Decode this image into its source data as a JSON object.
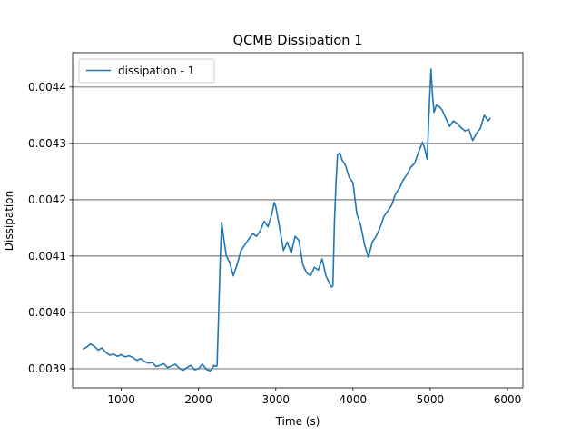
{
  "chart_data": {
    "type": "line",
    "title": "QCMB Dissipation 1",
    "xlabel": "Time (s)",
    "ylabel": "Dissipation",
    "xlim": [
      370,
      6200
    ],
    "ylim": [
      0.003866,
      0.004461
    ],
    "x_ticks": [
      1000,
      2000,
      3000,
      4000,
      5000,
      6000
    ],
    "x_tick_labels": [
      "1000",
      "2000",
      "3000",
      "4000",
      "5000",
      "6000"
    ],
    "y_ticks": [
      0.0039,
      0.004,
      0.0041,
      0.0042,
      0.0043,
      0.0044
    ],
    "y_tick_labels": [
      "0.0039",
      "0.0040",
      "0.0041",
      "0.0042",
      "0.0043",
      "0.0044"
    ],
    "grid": "horizontal",
    "legend": "top-left",
    "series": [
      {
        "name": "dissipation - 1",
        "color": "#1f77b4",
        "x": [
          500,
          550,
          600,
          650,
          700,
          750,
          800,
          850,
          900,
          950,
          1000,
          1050,
          1100,
          1150,
          1200,
          1250,
          1300,
          1350,
          1400,
          1450,
          1500,
          1550,
          1600,
          1650,
          1700,
          1750,
          1800,
          1850,
          1900,
          1950,
          2000,
          2050,
          2100,
          2150,
          2180,
          2200,
          2220,
          2240,
          2260,
          2280,
          2300,
          2330,
          2360,
          2400,
          2450,
          2500,
          2550,
          2600,
          2650,
          2700,
          2750,
          2800,
          2850,
          2900,
          2950,
          2980,
          3000,
          3050,
          3100,
          3150,
          3200,
          3250,
          3300,
          3350,
          3400,
          3450,
          3500,
          3550,
          3600,
          3650,
          3700,
          3720,
          3740,
          3760,
          3780,
          3800,
          3830,
          3860,
          3900,
          3950,
          4000,
          4050,
          4100,
          4150,
          4200,
          4250,
          4300,
          4350,
          4400,
          4450,
          4500,
          4550,
          4600,
          4650,
          4700,
          4750,
          4800,
          4850,
          4900,
          4930,
          4960,
          4990,
          5010,
          5030,
          5050,
          5080,
          5120,
          5160,
          5200,
          5250,
          5300,
          5350,
          5400,
          5450,
          5500,
          5550,
          5600,
          5650,
          5700,
          5750,
          5780
        ],
        "values": [
          0.003935,
          0.003938,
          0.003944,
          0.00394,
          0.003933,
          0.003937,
          0.003929,
          0.003924,
          0.003926,
          0.003922,
          0.003925,
          0.003921,
          0.003923,
          0.00392,
          0.003915,
          0.003918,
          0.003913,
          0.00391,
          0.003911,
          0.003904,
          0.003906,
          0.003909,
          0.003902,
          0.003905,
          0.003908,
          0.003901,
          0.003897,
          0.003902,
          0.003906,
          0.003898,
          0.0039,
          0.003908,
          0.003899,
          0.003896,
          0.003901,
          0.003906,
          0.003904,
          0.003905,
          0.003995,
          0.00409,
          0.00416,
          0.004128,
          0.0041,
          0.00409,
          0.004065,
          0.004085,
          0.00411,
          0.00412,
          0.00413,
          0.00414,
          0.004135,
          0.004145,
          0.004162,
          0.004152,
          0.004175,
          0.004195,
          0.004188,
          0.00415,
          0.00411,
          0.004125,
          0.004105,
          0.004135,
          0.004128,
          0.004085,
          0.00407,
          0.004065,
          0.00408,
          0.004075,
          0.004095,
          0.004065,
          0.00405,
          0.004045,
          0.004047,
          0.00416,
          0.00423,
          0.00428,
          0.004283,
          0.00427,
          0.004262,
          0.00424,
          0.00423,
          0.004175,
          0.004155,
          0.00412,
          0.004098,
          0.004125,
          0.004135,
          0.00415,
          0.00417,
          0.00418,
          0.00419,
          0.00421,
          0.00422,
          0.004235,
          0.004245,
          0.004258,
          0.004265,
          0.004285,
          0.004302,
          0.00429,
          0.004272,
          0.004372,
          0.004432,
          0.004385,
          0.004355,
          0.004368,
          0.004365,
          0.004358,
          0.004345,
          0.00433,
          0.00434,
          0.004335,
          0.004328,
          0.004322,
          0.004325,
          0.004305,
          0.004318,
          0.004327,
          0.00435,
          0.00434,
          0.004345
        ]
      }
    ]
  }
}
